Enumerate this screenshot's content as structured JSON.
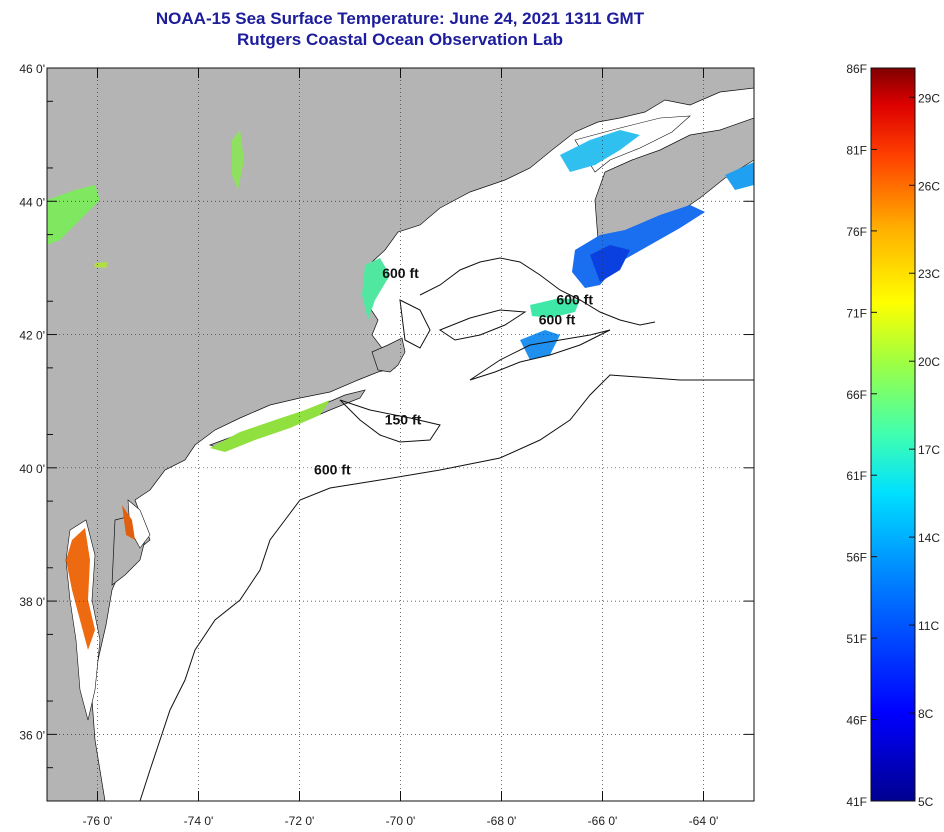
{
  "title": {
    "line1": "NOAA-15 Sea Surface Temperature:  June 24, 2021 1311 GMT",
    "line2": "Rutgers Coastal Ocean Observation Lab"
  },
  "map": {
    "lon_range": [
      -77,
      -63
    ],
    "lat_range": [
      35,
      46
    ],
    "lon_ticks": [
      {
        "value": -76,
        "label": "-76 0'"
      },
      {
        "value": -74,
        "label": "-74 0'"
      },
      {
        "value": -72,
        "label": "-72 0'"
      },
      {
        "value": -70,
        "label": "-70 0'"
      },
      {
        "value": -68,
        "label": "-68 0'"
      },
      {
        "value": -66,
        "label": "-66 0'"
      },
      {
        "value": -64,
        "label": "-64 0'"
      }
    ],
    "lat_ticks": [
      {
        "value": 46,
        "label": "46 0'"
      },
      {
        "value": 44,
        "label": "44 0'"
      },
      {
        "value": 42,
        "label": "42 0'"
      },
      {
        "value": 40,
        "label": "40 0'"
      },
      {
        "value": 38,
        "label": "38 0'"
      },
      {
        "value": 36,
        "label": "36 0'"
      }
    ],
    "contour_labels": [
      {
        "text": "600 ft",
        "lon": -70.0,
        "lat": 42.85
      },
      {
        "text": "600 ft",
        "lon": -66.55,
        "lat": 42.45
      },
      {
        "text": "600 ft",
        "lon": -66.9,
        "lat": 42.15
      },
      {
        "text": "150 ft",
        "lon": -69.95,
        "lat": 40.65
      },
      {
        "text": "600 ft",
        "lon": -71.35,
        "lat": 39.9
      }
    ],
    "land_color": "#b4b4b4",
    "ocean_color": "#ffffff"
  },
  "colorbar": {
    "min_f": 41,
    "max_f": 86,
    "f_labels": [
      "86F",
      "81F",
      "76F",
      "71F",
      "66F",
      "61F",
      "56F",
      "51F",
      "46F",
      "41F"
    ],
    "c_labels": [
      "29C",
      "26C",
      "23C",
      "20C",
      "17C",
      "14C",
      "11C",
      "8C",
      "5C"
    ],
    "c_values": [
      29,
      26,
      23,
      20,
      17,
      14,
      11,
      8,
      5
    ]
  }
}
